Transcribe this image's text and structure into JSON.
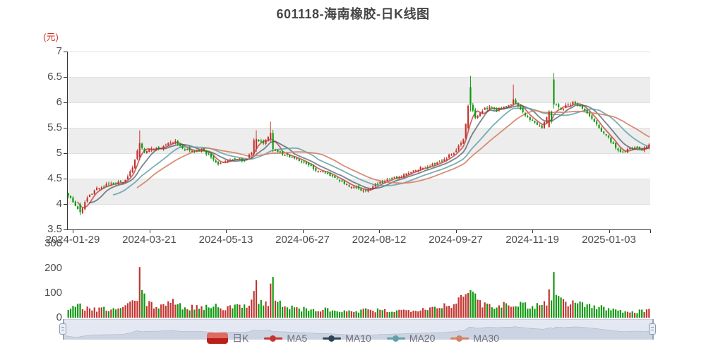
{
  "chart_data": {
    "type": "candlestick",
    "title": "601118-海南橡胶-日K线图",
    "unit_label": "(元)",
    "x_tick_labels": [
      "2024-01-29",
      "2024-03-21",
      "2024-05-13",
      "2024-06-27",
      "2024-08-12",
      "2024-09-27",
      "2024-11-19",
      "2025-01-03"
    ],
    "y_axis": {
      "min": 3.5,
      "max": 7,
      "tick_step": 0.5,
      "tick_labels": [
        "7",
        "6.5",
        "6",
        "5.5",
        "5",
        "4.5",
        "4",
        "3.5"
      ]
    },
    "volume_axis": {
      "min": 0,
      "max": 300,
      "tick_labels": [
        "300",
        "200",
        "100",
        "0"
      ]
    },
    "num_days": 245,
    "up_color": "#c23531",
    "down_color": "#0e9a0e",
    "band_colors": [
      "#ffffff",
      "#ededed"
    ],
    "grid_color": "#e0e0e0",
    "axis_color": "#333333",
    "close_anchors": [
      [
        0,
        4.18
      ],
      [
        2,
        4.05
      ],
      [
        5,
        3.84
      ],
      [
        8,
        4.12
      ],
      [
        12,
        4.3
      ],
      [
        16,
        4.38
      ],
      [
        20,
        4.4
      ],
      [
        24,
        4.46
      ],
      [
        27,
        4.7
      ],
      [
        30,
        5.2
      ],
      [
        32,
        5.0
      ],
      [
        35,
        5.12
      ],
      [
        38,
        5.08
      ],
      [
        42,
        5.18
      ],
      [
        45,
        5.22
      ],
      [
        48,
        5.1
      ],
      [
        52,
        5.02
      ],
      [
        56,
        5.06
      ],
      [
        60,
        4.92
      ],
      [
        63,
        4.8
      ],
      [
        66,
        4.85
      ],
      [
        70,
        4.88
      ],
      [
        74,
        4.86
      ],
      [
        77,
        5.0
      ],
      [
        79,
        5.28
      ],
      [
        82,
        5.18
      ],
      [
        85,
        5.4
      ],
      [
        86,
        5.08
      ],
      [
        88,
        5.02
      ],
      [
        92,
        4.95
      ],
      [
        96,
        4.88
      ],
      [
        100,
        4.78
      ],
      [
        104,
        4.68
      ],
      [
        108,
        4.6
      ],
      [
        112,
        4.52
      ],
      [
        116,
        4.42
      ],
      [
        120,
        4.32
      ],
      [
        124,
        4.26
      ],
      [
        128,
        4.34
      ],
      [
        132,
        4.44
      ],
      [
        136,
        4.5
      ],
      [
        140,
        4.55
      ],
      [
        144,
        4.62
      ],
      [
        148,
        4.7
      ],
      [
        152,
        4.76
      ],
      [
        156,
        4.82
      ],
      [
        160,
        4.95
      ],
      [
        163,
        5.05
      ],
      [
        166,
        5.28
      ],
      [
        168,
        5.93
      ],
      [
        169,
        5.95
      ],
      [
        171,
        5.72
      ],
      [
        174,
        5.85
      ],
      [
        177,
        5.92
      ],
      [
        180,
        5.85
      ],
      [
        183,
        5.9
      ],
      [
        186,
        5.98
      ],
      [
        187,
        6.05
      ],
      [
        190,
        5.85
      ],
      [
        193,
        5.7
      ],
      [
        196,
        5.6
      ],
      [
        199,
        5.5
      ],
      [
        202,
        5.82
      ],
      [
        203,
        5.62
      ],
      [
        204,
        5.96
      ],
      [
        207,
        5.88
      ],
      [
        210,
        5.95
      ],
      [
        212,
        6.0
      ],
      [
        215,
        5.92
      ],
      [
        218,
        5.8
      ],
      [
        221,
        5.6
      ],
      [
        224,
        5.45
      ],
      [
        227,
        5.3
      ],
      [
        230,
        5.1
      ],
      [
        232,
        5.0
      ],
      [
        235,
        5.08
      ],
      [
        238,
        5.12
      ],
      [
        241,
        5.08
      ],
      [
        244,
        5.16
      ]
    ],
    "explicit_candles": {
      "5": [
        4.0,
        4.03,
        3.78,
        3.84
      ],
      "30": [
        4.92,
        5.45,
        4.86,
        5.2
      ],
      "78": [
        4.98,
        5.3,
        4.95,
        5.26
      ],
      "79": [
        5.08,
        5.45,
        5.02,
        5.28
      ],
      "85": [
        5.28,
        5.62,
        5.22,
        5.4
      ],
      "86": [
        5.4,
        5.46,
        5.02,
        5.08
      ],
      "168": [
        5.5,
        5.96,
        5.46,
        5.93
      ],
      "169": [
        6.3,
        6.52,
        5.82,
        5.95
      ],
      "187": [
        5.97,
        6.35,
        5.93,
        6.06
      ],
      "202": [
        5.52,
        5.85,
        5.5,
        5.82
      ],
      "203": [
        5.82,
        5.84,
        5.58,
        5.62
      ],
      "204": [
        6.45,
        6.58,
        5.88,
        5.96
      ]
    },
    "volume_anchors": [
      [
        0,
        30
      ],
      [
        3,
        40
      ],
      [
        5,
        48
      ],
      [
        8,
        35
      ],
      [
        12,
        30
      ],
      [
        16,
        35
      ],
      [
        20,
        32
      ],
      [
        24,
        45
      ],
      [
        27,
        60
      ],
      [
        29,
        70
      ],
      [
        33,
        60
      ],
      [
        36,
        42
      ],
      [
        40,
        55
      ],
      [
        43,
        62
      ],
      [
        46,
        48
      ],
      [
        50,
        38
      ],
      [
        54,
        44
      ],
      [
        58,
        40
      ],
      [
        62,
        52
      ],
      [
        66,
        38
      ],
      [
        70,
        42
      ],
      [
        74,
        48
      ],
      [
        77,
        70
      ],
      [
        80,
        62
      ],
      [
        83,
        55
      ],
      [
        88,
        60
      ],
      [
        92,
        42
      ],
      [
        96,
        36
      ],
      [
        100,
        32
      ],
      [
        104,
        28
      ],
      [
        108,
        32
      ],
      [
        112,
        26
      ],
      [
        116,
        24
      ],
      [
        120,
        22
      ],
      [
        124,
        30
      ],
      [
        128,
        26
      ],
      [
        132,
        30
      ],
      [
        136,
        26
      ],
      [
        140,
        28
      ],
      [
        144,
        32
      ],
      [
        148,
        36
      ],
      [
        152,
        40
      ],
      [
        156,
        44
      ],
      [
        160,
        52
      ],
      [
        163,
        58
      ],
      [
        166,
        80
      ],
      [
        171,
        85
      ],
      [
        174,
        55
      ],
      [
        177,
        50
      ],
      [
        180,
        48
      ],
      [
        183,
        52
      ],
      [
        186,
        58
      ],
      [
        190,
        55
      ],
      [
        193,
        45
      ],
      [
        196,
        48
      ],
      [
        199,
        52
      ],
      [
        201,
        60
      ],
      [
        207,
        70
      ],
      [
        210,
        62
      ],
      [
        214,
        58
      ],
      [
        218,
        50
      ],
      [
        222,
        42
      ],
      [
        226,
        36
      ],
      [
        230,
        30
      ],
      [
        234,
        26
      ],
      [
        238,
        24
      ],
      [
        241,
        26
      ],
      [
        244,
        30
      ]
    ],
    "explicit_volumes": {
      "30": 205,
      "31": 112,
      "32": 98,
      "78": 108,
      "79": 152,
      "85": 138,
      "86": 165,
      "166": 85,
      "167": 95,
      "168": 100,
      "169": 112,
      "170": 105,
      "171": 98,
      "202": 115,
      "203": 70,
      "204": 185,
      "205": 92,
      "206": 88
    },
    "ma_series": [
      {
        "name": "MA5",
        "window": 5,
        "color": "#c23531",
        "alpha": 0.75
      },
      {
        "name": "MA10",
        "window": 10,
        "color": "#2f4554",
        "alpha": 0.65
      },
      {
        "name": "MA20",
        "window": 20,
        "color": "#61a0a8",
        "alpha": 0.85
      },
      {
        "name": "MA30",
        "window": 30,
        "color": "#d48265",
        "alpha": 0.9
      }
    ],
    "legend": {
      "items": [
        {
          "key": "daily-k",
          "label": "日K",
          "marker": "candle",
          "color": "#c23531"
        },
        {
          "key": "ma5",
          "label": "MA5",
          "marker": "line",
          "color": "#c23531"
        },
        {
          "key": "ma10",
          "label": "MA10",
          "marker": "line",
          "color": "#2f4554"
        },
        {
          "key": "ma20",
          "label": "MA20",
          "marker": "line",
          "color": "#61a0a8"
        },
        {
          "key": "ma30",
          "label": "MA30",
          "marker": "line",
          "color": "#d48265"
        }
      ]
    },
    "navigator": {
      "bg": "#e4e8f2",
      "border": "#c9cedd",
      "area_fill": "#ccd3e3",
      "line": "#a6b0c3"
    }
  }
}
